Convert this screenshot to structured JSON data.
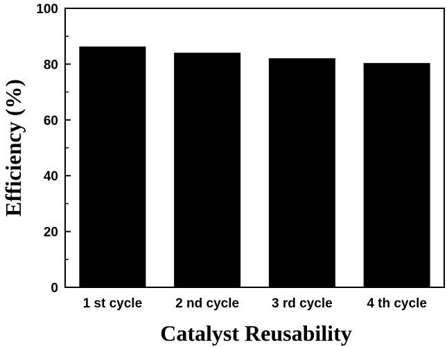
{
  "chart_data": {
    "type": "bar",
    "categories": [
      "1 st cycle",
      "2 nd cycle",
      "3 rd cycle",
      "4 th cycle"
    ],
    "values": [
      86.3,
      84.1,
      82.1,
      80.4
    ],
    "xlabel": "Catalyst Reusability",
    "ylabel": "Efficiency (%)",
    "ylim": [
      0,
      100
    ],
    "yticks": [
      0,
      20,
      40,
      60,
      80,
      100
    ],
    "bar_color": "#000000",
    "grid": false
  }
}
